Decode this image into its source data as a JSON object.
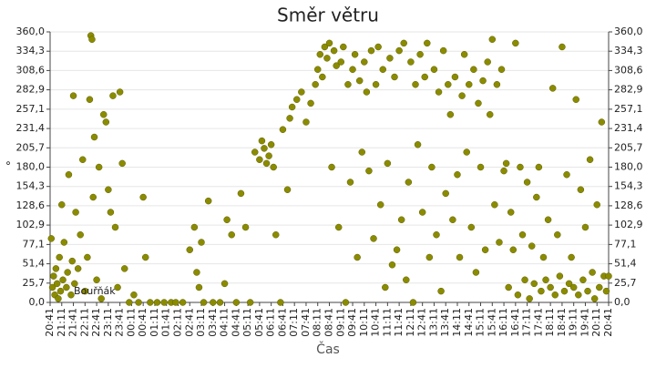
{
  "chart_data": {
    "type": "scatter",
    "title": "Směr větru",
    "xlabel": "Čas",
    "ylabel": "°",
    "xlim": [
      0,
      24
    ],
    "ylim": [
      0,
      360
    ],
    "grid": true,
    "legend": "bottom-left",
    "yticks": [
      {
        "value": 0,
        "label": "0,0"
      },
      {
        "value": 25.7,
        "label": "25,7"
      },
      {
        "value": 51.4,
        "label": "51,4"
      },
      {
        "value": 77.1,
        "label": "77,1"
      },
      {
        "value": 102.9,
        "label": "102,9"
      },
      {
        "value": 128.6,
        "label": "128,6"
      },
      {
        "value": 154.3,
        "label": "154,3"
      },
      {
        "value": 180,
        "label": "180,0"
      },
      {
        "value": 205.7,
        "label": "205,7"
      },
      {
        "value": 231.4,
        "label": "231,4"
      },
      {
        "value": 257.1,
        "label": "257,1"
      },
      {
        "value": 282.9,
        "label": "282,9"
      },
      {
        "value": 308.6,
        "label": "308,6"
      },
      {
        "value": 334.3,
        "label": "334,3"
      },
      {
        "value": 360,
        "label": "360,0"
      }
    ],
    "xticks": [
      {
        "value": 0,
        "label": "20:41"
      },
      {
        "value": 0.5,
        "label": "21:11"
      },
      {
        "value": 1,
        "label": "21:41"
      },
      {
        "value": 1.5,
        "label": "22:11"
      },
      {
        "value": 2,
        "label": "22:41"
      },
      {
        "value": 2.5,
        "label": "23:11"
      },
      {
        "value": 3,
        "label": "23:41"
      },
      {
        "value": 3.5,
        "label": "00:11"
      },
      {
        "value": 4,
        "label": "00:41"
      },
      {
        "value": 4.5,
        "label": "01:11"
      },
      {
        "value": 5,
        "label": "01:41"
      },
      {
        "value": 5.5,
        "label": "02:11"
      },
      {
        "value": 6,
        "label": "02:41"
      },
      {
        "value": 6.5,
        "label": "03:11"
      },
      {
        "value": 7,
        "label": "03:41"
      },
      {
        "value": 7.5,
        "label": "04:11"
      },
      {
        "value": 8,
        "label": "04:41"
      },
      {
        "value": 8.5,
        "label": "05:11"
      },
      {
        "value": 9,
        "label": "05:41"
      },
      {
        "value": 9.5,
        "label": "06:11"
      },
      {
        "value": 10,
        "label": "06:41"
      },
      {
        "value": 10.5,
        "label": "07:11"
      },
      {
        "value": 11,
        "label": "07:41"
      },
      {
        "value": 11.5,
        "label": "08:11"
      },
      {
        "value": 12,
        "label": "08:41"
      },
      {
        "value": 12.5,
        "label": "09:11"
      },
      {
        "value": 13,
        "label": "09:41"
      },
      {
        "value": 13.5,
        "label": "10:11"
      },
      {
        "value": 14,
        "label": "10:41"
      },
      {
        "value": 14.5,
        "label": "11:11"
      },
      {
        "value": 15,
        "label": "11:41"
      },
      {
        "value": 15.5,
        "label": "12:11"
      },
      {
        "value": 16,
        "label": "12:41"
      },
      {
        "value": 16.5,
        "label": "13:11"
      },
      {
        "value": 17,
        "label": "13:41"
      },
      {
        "value": 17.5,
        "label": "14:11"
      },
      {
        "value": 18,
        "label": "14:41"
      },
      {
        "value": 18.5,
        "label": "15:11"
      },
      {
        "value": 19,
        "label": "15:41"
      },
      {
        "value": 19.5,
        "label": "16:11"
      },
      {
        "value": 20,
        "label": "16:41"
      },
      {
        "value": 20.5,
        "label": "17:11"
      },
      {
        "value": 21,
        "label": "17:41"
      },
      {
        "value": 21.5,
        "label": "18:11"
      },
      {
        "value": 22,
        "label": "18:41"
      },
      {
        "value": 22.5,
        "label": "19:11"
      },
      {
        "value": 23,
        "label": "19:41"
      },
      {
        "value": 23.5,
        "label": "20:11"
      },
      {
        "value": 24,
        "label": "20:41"
      }
    ],
    "series": [
      {
        "name": "Bouřňák",
        "color": "#8b8b00",
        "x": [
          0.05,
          0.1,
          0.15,
          0.2,
          0.25,
          0.3,
          0.35,
          0.4,
          0.45,
          0.5,
          0.55,
          0.6,
          0.7,
          0.75,
          0.8,
          0.9,
          0.95,
          1.0,
          1.05,
          1.1,
          1.2,
          1.3,
          1.4,
          1.5,
          1.6,
          1.7,
          1.75,
          1.8,
          1.85,
          1.9,
          2.0,
          2.1,
          2.2,
          2.3,
          2.4,
          2.5,
          2.6,
          2.7,
          2.8,
          2.9,
          3.0,
          3.1,
          3.2,
          3.4,
          3.6,
          3.8,
          4.0,
          4.1,
          4.3,
          4.6,
          4.9,
          5.2,
          5.4,
          5.7,
          6.0,
          6.2,
          6.3,
          6.4,
          6.5,
          6.6,
          6.8,
          7.0,
          7.3,
          7.5,
          7.6,
          7.8,
          8.0,
          8.2,
          8.4,
          8.6,
          8.8,
          9.0,
          9.1,
          9.2,
          9.3,
          9.4,
          9.5,
          9.6,
          9.7,
          9.9,
          10.0,
          10.2,
          10.3,
          10.4,
          10.6,
          10.8,
          11.0,
          11.2,
          11.4,
          11.5,
          11.6,
          11.7,
          11.8,
          11.9,
          12.0,
          12.1,
          12.2,
          12.3,
          12.4,
          12.5,
          12.6,
          12.7,
          12.8,
          12.9,
          13.0,
          13.1,
          13.2,
          13.3,
          13.4,
          13.5,
          13.6,
          13.7,
          13.8,
          13.9,
          14.0,
          14.1,
          14.2,
          14.3,
          14.4,
          14.5,
          14.6,
          14.7,
          14.8,
          14.9,
          15.0,
          15.1,
          15.2,
          15.3,
          15.4,
          15.5,
          15.6,
          15.7,
          15.8,
          15.9,
          16.0,
          16.1,
          16.2,
          16.3,
          16.4,
          16.5,
          16.6,
          16.7,
          16.8,
          16.9,
          17.0,
          17.1,
          17.2,
          17.3,
          17.4,
          17.5,
          17.6,
          17.7,
          17.8,
          17.9,
          18.0,
          18.1,
          18.2,
          18.3,
          18.4,
          18.5,
          18.6,
          18.7,
          18.8,
          18.9,
          19.0,
          19.1,
          19.2,
          19.3,
          19.4,
          19.5,
          19.6,
          19.7,
          19.8,
          19.9,
          20.0,
          20.1,
          20.2,
          20.3,
          20.4,
          20.5,
          20.6,
          20.7,
          20.8,
          20.9,
          21.0,
          21.1,
          21.2,
          21.3,
          21.4,
          21.5,
          21.6,
          21.7,
          21.8,
          21.9,
          22.0,
          22.1,
          22.2,
          22.3,
          22.4,
          22.5,
          22.6,
          22.7,
          22.8,
          22.9,
          23.0,
          23.1,
          23.2,
          23.3,
          23.4,
          23.5,
          23.6,
          23.7,
          23.8,
          23.9,
          24.0
        ],
        "values": [
          85,
          20,
          35,
          10,
          45,
          25,
          5,
          60,
          15,
          130,
          30,
          80,
          20,
          40,
          170,
          10,
          55,
          275,
          25,
          120,
          45,
          90,
          190,
          15,
          60,
          270,
          355,
          350,
          140,
          220,
          30,
          180,
          5,
          250,
          240,
          150,
          120,
          275,
          100,
          20,
          280,
          185,
          45,
          0,
          10,
          0,
          140,
          60,
          0,
          0,
          0,
          0,
          0,
          0,
          70,
          100,
          40,
          20,
          80,
          0,
          135,
          0,
          0,
          25,
          110,
          90,
          0,
          145,
          100,
          0,
          200,
          190,
          215,
          205,
          185,
          195,
          210,
          180,
          90,
          0,
          230,
          150,
          245,
          260,
          270,
          280,
          240,
          265,
          290,
          310,
          330,
          300,
          340,
          325,
          345,
          180,
          335,
          315,
          100,
          320,
          340,
          0,
          290,
          160,
          310,
          330,
          60,
          295,
          200,
          320,
          280,
          175,
          335,
          85,
          290,
          340,
          130,
          310,
          20,
          185,
          325,
          50,
          300,
          70,
          335,
          110,
          345,
          30,
          160,
          320,
          0,
          290,
          210,
          330,
          120,
          300,
          345,
          60,
          180,
          310,
          90,
          280,
          15,
          335,
          145,
          290,
          250,
          110,
          300,
          170,
          60,
          275,
          330,
          200,
          290,
          100,
          310,
          40,
          265,
          180,
          295,
          70,
          320,
          250,
          350,
          130,
          290,
          80,
          310,
          175,
          185,
          20,
          120,
          70,
          345,
          10,
          180,
          90,
          30,
          160,
          5,
          75,
          25,
          140,
          180,
          15,
          60,
          30,
          110,
          20,
          285,
          10,
          90,
          35,
          340,
          15,
          170,
          25,
          60,
          20,
          270,
          10,
          150,
          30,
          100,
          15,
          190,
          40,
          5,
          130,
          20,
          240,
          35,
          15,
          35
        ]
      }
    ]
  }
}
